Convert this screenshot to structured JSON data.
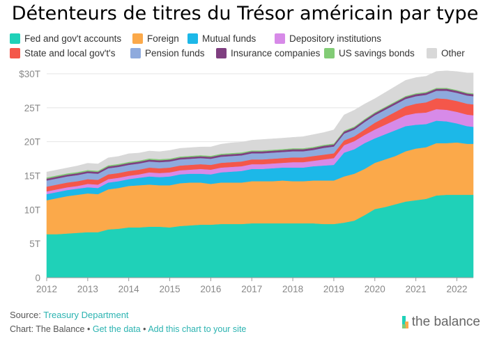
{
  "title": "Détenteurs de titres du Trésor américain par type",
  "chart_data": {
    "type": "area",
    "stacked": true,
    "x": [
      2012.0,
      2012.25,
      2012.5,
      2012.75,
      2013.0,
      2013.25,
      2013.5,
      2013.75,
      2014.0,
      2014.25,
      2014.5,
      2014.75,
      2015.0,
      2015.25,
      2015.5,
      2015.75,
      2016.0,
      2016.25,
      2016.5,
      2016.75,
      2017.0,
      2017.25,
      2017.5,
      2017.75,
      2018.0,
      2018.25,
      2018.5,
      2018.75,
      2019.0,
      2019.25,
      2019.5,
      2019.75,
      2020.0,
      2020.25,
      2020.5,
      2020.75,
      2021.0,
      2021.25,
      2021.5,
      2021.75,
      2022.0,
      2022.25,
      2022.4
    ],
    "xlim": [
      2012.0,
      2022.4
    ],
    "ylim": [
      0,
      30
    ],
    "yticks": [
      0,
      5,
      10,
      15,
      20,
      25,
      30
    ],
    "ytick_labels": [
      "0",
      "5T",
      "10T",
      "15T",
      "20T",
      "25T",
      "$30T"
    ],
    "xticks": [
      2012,
      2013,
      2014,
      2015,
      2016,
      2017,
      2018,
      2019,
      2020,
      2021,
      2022
    ],
    "grid": true,
    "legend_position": "top",
    "series": [
      {
        "name": "Fed and gov't accounts",
        "color": "#1fd1b8",
        "values": [
          6.4,
          6.4,
          6.5,
          6.6,
          6.7,
          6.7,
          7.1,
          7.2,
          7.4,
          7.4,
          7.5,
          7.5,
          7.4,
          7.6,
          7.7,
          7.8,
          7.8,
          7.9,
          7.9,
          7.9,
          8.0,
          8.0,
          8.0,
          8.0,
          8.0,
          8.0,
          8.0,
          7.9,
          7.9,
          8.1,
          8.4,
          9.2,
          10.1,
          10.4,
          10.8,
          11.2,
          11.4,
          11.6,
          12.1,
          12.2,
          12.2,
          12.2,
          12.2
        ]
      },
      {
        "name": "Foreign",
        "color": "#fba94a",
        "values": [
          5.0,
          5.3,
          5.5,
          5.6,
          5.7,
          5.6,
          5.9,
          6.0,
          6.1,
          6.2,
          6.2,
          6.1,
          6.2,
          6.3,
          6.3,
          6.2,
          6.0,
          6.1,
          6.1,
          6.1,
          6.2,
          6.2,
          6.2,
          6.3,
          6.2,
          6.2,
          6.3,
          6.4,
          6.4,
          6.8,
          6.9,
          6.8,
          6.8,
          7.0,
          7.1,
          7.4,
          7.6,
          7.6,
          7.7,
          7.6,
          7.7,
          7.5,
          7.5
        ]
      },
      {
        "name": "Mutual funds",
        "color": "#1cb8e8",
        "values": [
          0.9,
          0.9,
          0.9,
          0.9,
          0.9,
          0.9,
          1.0,
          1.0,
          1.0,
          1.1,
          1.2,
          1.2,
          1.3,
          1.3,
          1.3,
          1.3,
          1.4,
          1.5,
          1.6,
          1.7,
          1.8,
          1.8,
          1.9,
          1.9,
          2.0,
          2.0,
          2.1,
          2.2,
          2.3,
          3.5,
          3.6,
          3.8,
          3.6,
          3.7,
          3.8,
          3.7,
          3.5,
          3.4,
          3.3,
          3.2,
          2.8,
          2.6,
          2.5
        ]
      },
      {
        "name": "Depository institutions",
        "color": "#d78ae8",
        "values": [
          0.4,
          0.4,
          0.4,
          0.4,
          0.5,
          0.5,
          0.5,
          0.5,
          0.5,
          0.5,
          0.6,
          0.6,
          0.6,
          0.6,
          0.6,
          0.7,
          0.7,
          0.7,
          0.7,
          0.7,
          0.7,
          0.7,
          0.7,
          0.7,
          0.8,
          0.8,
          0.8,
          0.9,
          1.0,
          1.1,
          1.2,
          1.2,
          1.3,
          1.4,
          1.5,
          1.6,
          1.7,
          1.7,
          1.7,
          1.7,
          1.7,
          1.7,
          1.7
        ]
      },
      {
        "name": "State and local gov't's",
        "color": "#f4574a",
        "values": [
          0.7,
          0.7,
          0.7,
          0.7,
          0.7,
          0.7,
          0.7,
          0.7,
          0.7,
          0.7,
          0.7,
          0.7,
          0.7,
          0.7,
          0.7,
          0.7,
          0.7,
          0.7,
          0.7,
          0.7,
          0.7,
          0.7,
          0.7,
          0.7,
          0.7,
          0.7,
          0.7,
          0.7,
          0.7,
          0.7,
          0.7,
          0.8,
          1.0,
          1.1,
          1.2,
          1.3,
          1.4,
          1.5,
          1.6,
          1.6,
          1.6,
          1.6,
          1.6
        ]
      },
      {
        "name": "Pension funds",
        "color": "#8eaadd",
        "values": [
          0.9,
          0.9,
          0.9,
          0.9,
          0.9,
          0.9,
          0.9,
          0.9,
          0.9,
          0.9,
          0.9,
          0.9,
          0.9,
          0.9,
          0.9,
          0.9,
          0.9,
          0.9,
          0.9,
          0.9,
          0.9,
          0.9,
          0.9,
          0.9,
          0.9,
          0.9,
          0.9,
          1.0,
          1.0,
          1.0,
          1.0,
          1.1,
          1.1,
          1.1,
          1.1,
          1.1,
          1.1,
          1.1,
          1.1,
          1.2,
          1.2,
          1.2,
          1.2
        ]
      },
      {
        "name": "Insurance companies",
        "color": "#7f3f80",
        "values": [
          0.27,
          0.27,
          0.27,
          0.27,
          0.27,
          0.27,
          0.27,
          0.27,
          0.27,
          0.27,
          0.27,
          0.27,
          0.27,
          0.27,
          0.27,
          0.27,
          0.28,
          0.28,
          0.28,
          0.28,
          0.28,
          0.28,
          0.28,
          0.28,
          0.3,
          0.3,
          0.3,
          0.3,
          0.3,
          0.3,
          0.3,
          0.3,
          0.3,
          0.3,
          0.3,
          0.3,
          0.3,
          0.3,
          0.3,
          0.3,
          0.3,
          0.3,
          0.3
        ]
      },
      {
        "name": "US savings bonds",
        "color": "#82cc76",
        "values": [
          0.18,
          0.18,
          0.18,
          0.18,
          0.17,
          0.17,
          0.17,
          0.17,
          0.17,
          0.17,
          0.17,
          0.17,
          0.16,
          0.16,
          0.16,
          0.16,
          0.16,
          0.16,
          0.16,
          0.16,
          0.15,
          0.15,
          0.15,
          0.15,
          0.15,
          0.15,
          0.15,
          0.15,
          0.15,
          0.15,
          0.15,
          0.15,
          0.14,
          0.14,
          0.14,
          0.14,
          0.14,
          0.14,
          0.14,
          0.14,
          0.13,
          0.13,
          0.13
        ]
      },
      {
        "name": "Other",
        "color": "#d8d8d8",
        "values": [
          0.8,
          0.8,
          0.8,
          0.9,
          1.0,
          1.0,
          1.1,
          1.1,
          1.2,
          1.1,
          1.1,
          1.1,
          1.2,
          1.2,
          1.2,
          1.2,
          1.3,
          1.4,
          1.5,
          1.5,
          1.5,
          1.6,
          1.6,
          1.6,
          1.6,
          1.7,
          1.8,
          1.8,
          2.0,
          2.3,
          2.4,
          2.2,
          2.0,
          2.1,
          2.2,
          2.3,
          2.3,
          2.3,
          2.4,
          2.5,
          2.7,
          2.9,
          3.0
        ]
      }
    ]
  },
  "footer": {
    "source_label": "Source:",
    "source_link": "Treasury Department",
    "chart_by": "Chart: The Balance",
    "sep1": "•",
    "get_data": "Get the data",
    "sep2": "•",
    "add_chart": "Add this chart to your site"
  },
  "brand": {
    "name": "the balance",
    "mark_colors": [
      "#1fd1b8",
      "#fba94a",
      "#82cc76"
    ]
  }
}
